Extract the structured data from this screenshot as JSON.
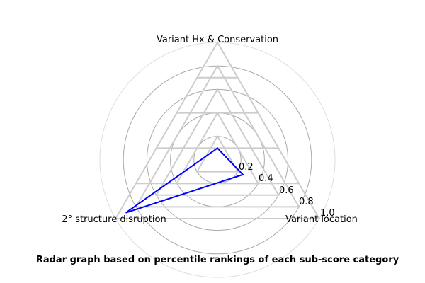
{
  "chart_data": {
    "type": "radar",
    "title": "Radar graph based on percentile rankings of each sub-score category",
    "axes": [
      "Variant Hx & Conservation",
      "Variant location",
      "2° structure disruption"
    ],
    "radial_ticks": [
      "0.2",
      "0.4",
      "0.6",
      "0.8",
      "1.0"
    ],
    "radial_tick_values": [
      0.2,
      0.4,
      0.6,
      0.8,
      1.0
    ],
    "rlim": [
      0,
      1.0
    ],
    "series": [
      {
        "values": [
          0.1,
          0.25,
          0.9
        ],
        "color": "#0000ff"
      }
    ],
    "grid": true,
    "grid_color": "#aaaaaa",
    "spoke_color": "#cccccc"
  }
}
